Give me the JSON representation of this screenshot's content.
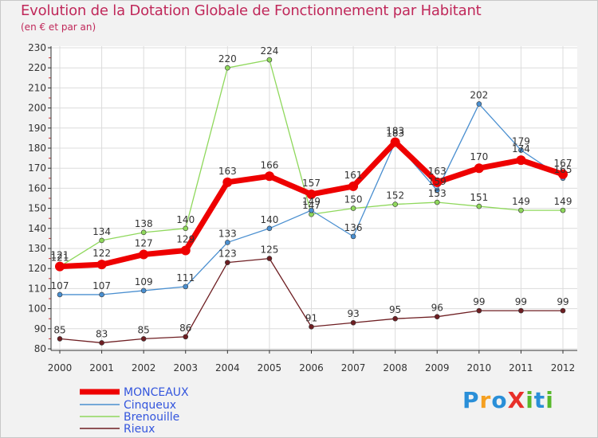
{
  "header": {
    "title": "Evolution de la Dotation Globale de Fonctionnement par Habitant",
    "subtitle": "(en € et par an)"
  },
  "logo": {
    "text": "ProXiti",
    "letters": [
      "P",
      "r",
      "o",
      "X",
      "i",
      "t",
      "i"
    ]
  },
  "colors": {
    "MONCEAUX": "#ee0000",
    "Cinqueux": "#4a8fd0",
    "Brenouille": "#8fd85c",
    "Rieux": "#6e1e22",
    "grid": "#dcdcdc",
    "axis": "#333333",
    "title": "#c0285a"
  },
  "chart_data": {
    "type": "line",
    "title": "Evolution de la Dotation Globale de Fonctionnement par Habitant",
    "subtitle": "(en € et par an)",
    "xlabel": "",
    "ylabel": "",
    "x": [
      "2000",
      "2001",
      "2002",
      "2003",
      "2004",
      "2005",
      "2006",
      "2007",
      "2008",
      "2009",
      "2010",
      "2011",
      "2012"
    ],
    "ylim": [
      80,
      230
    ],
    "yticks": [
      80,
      90,
      100,
      110,
      120,
      130,
      140,
      150,
      160,
      170,
      180,
      190,
      200,
      210,
      220,
      230
    ],
    "grid": true,
    "legend_position": "bottom-left",
    "series": [
      {
        "name": "Rieux",
        "values": [
          85,
          83,
          85,
          86,
          123,
          125,
          91,
          93,
          95,
          96,
          99,
          99,
          99
        ]
      },
      {
        "name": "Brenouille",
        "values": [
          121,
          134,
          138,
          140,
          220,
          224,
          147,
          150,
          152,
          153,
          151,
          149,
          149
        ]
      },
      {
        "name": "Cinqueux",
        "values": [
          107,
          107,
          109,
          111,
          133,
          140,
          149,
          136,
          183,
          159,
          202,
          179,
          165
        ]
      },
      {
        "name": "MONCEAUX",
        "values": [
          121,
          122,
          127,
          129,
          163,
          166,
          157,
          161,
          183,
          163,
          170,
          174,
          167
        ]
      }
    ],
    "legend": [
      "MONCEAUX",
      "Cinqueux",
      "Brenouille",
      "Rieux"
    ]
  }
}
